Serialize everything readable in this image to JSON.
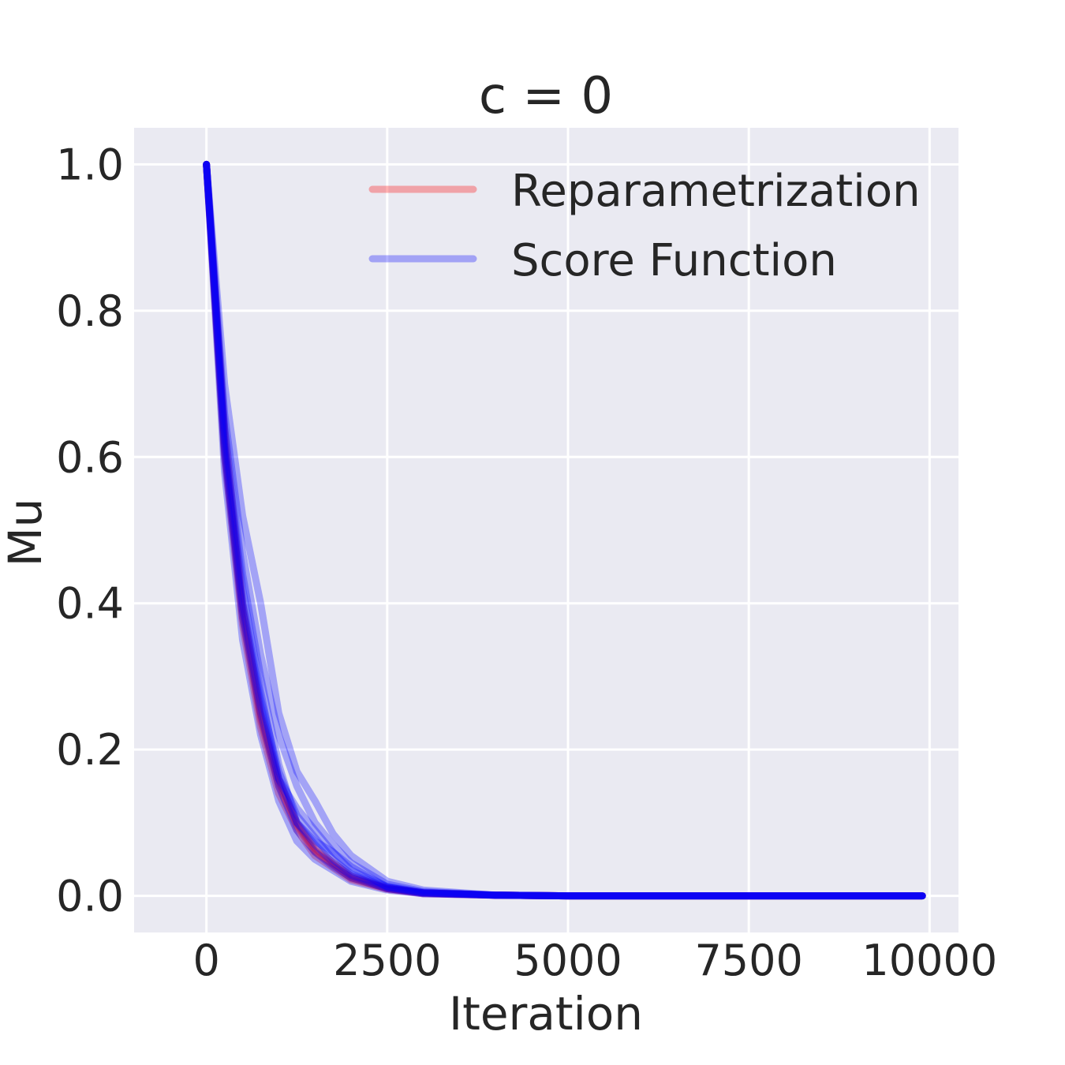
{
  "chart_data": {
    "type": "line",
    "title": "c = 0",
    "xlabel": "Iteration",
    "ylabel": "Mu",
    "xlim": [
      -1000,
      10400
    ],
    "ylim": [
      -0.05,
      1.05
    ],
    "xticks": [
      0,
      2500,
      5000,
      7500,
      10000
    ],
    "xtick_labels": [
      "0",
      "2500",
      "5000",
      "7500",
      "10000"
    ],
    "yticks": [
      0.0,
      0.2,
      0.4,
      0.6,
      0.8,
      1.0
    ],
    "ytick_labels": [
      "0.0",
      "0.2",
      "0.4",
      "0.6",
      "0.8",
      "1.0"
    ],
    "grid": true,
    "legend_position": "top-right",
    "background": "#eaeaf2",
    "series": [
      {
        "name": "Reparametrization",
        "color": "#ff0000",
        "runs": [
          {
            "x": [
              0,
              250,
              500,
              750,
              1000,
              1250,
              1500,
              2000,
              2500,
              3000,
              4000,
              5000,
              7500,
              9900
            ],
            "y": [
              1.0,
              0.62,
              0.38,
              0.24,
              0.15,
              0.095,
              0.06,
              0.025,
              0.01,
              0.004,
              0.001,
              0.0,
              0.0,
              0.0
            ]
          },
          {
            "x": [
              0,
              250,
              500,
              750,
              1000,
              1250,
              1500,
              2000,
              2500,
              3000,
              4000,
              5000,
              7500,
              9900
            ],
            "y": [
              1.0,
              0.6,
              0.37,
              0.23,
              0.14,
              0.09,
              0.055,
              0.022,
              0.009,
              0.003,
              0.001,
              0.0,
              0.0,
              0.0
            ]
          },
          {
            "x": [
              0,
              250,
              500,
              750,
              1000,
              1250,
              1500,
              2000,
              2500,
              3000,
              4000,
              5000,
              7500,
              9900
            ],
            "y": [
              1.0,
              0.64,
              0.4,
              0.25,
              0.16,
              0.1,
              0.065,
              0.027,
              0.011,
              0.004,
              0.001,
              0.0,
              0.0,
              0.0
            ]
          },
          {
            "x": [
              0,
              250,
              500,
              750,
              1000,
              1250,
              1500,
              2000,
              2500,
              3000,
              4000,
              5000,
              7500,
              9900
            ],
            "y": [
              1.0,
              0.61,
              0.39,
              0.245,
              0.155,
              0.098,
              0.062,
              0.024,
              0.01,
              0.004,
              0.001,
              0.0,
              0.0,
              0.0
            ]
          }
        ]
      },
      {
        "name": "Score Function",
        "color": "#0000ff",
        "runs": [
          {
            "x": [
              0,
              250,
              500,
              750,
              1000,
              1250,
              1500,
              1750,
              2000,
              2500,
              3000,
              4000,
              5000,
              7500,
              9900
            ],
            "y": [
              1.0,
              0.7,
              0.52,
              0.4,
              0.25,
              0.17,
              0.13,
              0.085,
              0.055,
              0.02,
              0.008,
              0.001,
              0.0,
              0.0,
              0.0
            ]
          },
          {
            "x": [
              0,
              250,
              500,
              750,
              1000,
              1250,
              1500,
              1750,
              2000,
              2500,
              3000,
              4000,
              5000,
              7500,
              9900
            ],
            "y": [
              1.0,
              0.64,
              0.44,
              0.3,
              0.18,
              0.1,
              0.075,
              0.06,
              0.04,
              0.012,
              0.004,
              0.001,
              0.0,
              0.0,
              0.0
            ]
          },
          {
            "x": [
              0,
              250,
              500,
              750,
              1000,
              1250,
              1500,
              1750,
              2000,
              2500,
              3000,
              4000,
              5000,
              7500,
              9900
            ],
            "y": [
              1.0,
              0.58,
              0.35,
              0.22,
              0.13,
              0.075,
              0.05,
              0.035,
              0.02,
              0.008,
              0.003,
              0.001,
              0.0,
              0.0,
              0.0
            ]
          },
          {
            "x": [
              0,
              250,
              500,
              750,
              1000,
              1250,
              1500,
              1750,
              2000,
              2500,
              3000,
              4000,
              5000,
              7500,
              9900
            ],
            "y": [
              1.0,
              0.62,
              0.4,
              0.27,
              0.17,
              0.11,
              0.08,
              0.05,
              0.03,
              0.012,
              0.004,
              0.001,
              0.0,
              0.0,
              0.0
            ]
          },
          {
            "x": [
              0,
              250,
              500,
              750,
              1000,
              1250,
              1500,
              1750,
              2000,
              2500,
              3000,
              4000,
              5000,
              7500,
              9900
            ],
            "y": [
              1.0,
              0.66,
              0.47,
              0.33,
              0.22,
              0.15,
              0.1,
              0.07,
              0.045,
              0.016,
              0.006,
              0.001,
              0.0,
              0.0,
              0.0
            ]
          },
          {
            "x": [
              0,
              250,
              500,
              750,
              1000,
              1250,
              1500,
              1750,
              2000,
              2500,
              3000,
              4000,
              5000,
              7500,
              9900
            ],
            "y": [
              1.0,
              0.6,
              0.38,
              0.25,
              0.15,
              0.09,
              0.06,
              0.04,
              0.025,
              0.01,
              0.003,
              0.001,
              0.0,
              0.0,
              0.0
            ]
          },
          {
            "x": [
              0,
              250,
              500,
              750,
              1000,
              1250,
              1500,
              1750,
              2000,
              2500,
              3000,
              4000,
              5000,
              7500,
              9900
            ],
            "y": [
              1.0,
              0.63,
              0.42,
              0.28,
              0.16,
              0.12,
              0.09,
              0.06,
              0.035,
              0.013,
              0.005,
              0.001,
              0.0,
              0.0,
              0.0
            ]
          },
          {
            "x": [
              0,
              250,
              500,
              750,
              1000,
              1250,
              1500,
              1750,
              2000,
              2500,
              3000,
              4000,
              5000,
              7500,
              9900
            ],
            "y": [
              1.0,
              0.61,
              0.39,
              0.26,
              0.16,
              0.1,
              0.07,
              0.045,
              0.028,
              0.01,
              0.004,
              0.001,
              0.0,
              0.0,
              0.0
            ]
          }
        ]
      }
    ]
  }
}
